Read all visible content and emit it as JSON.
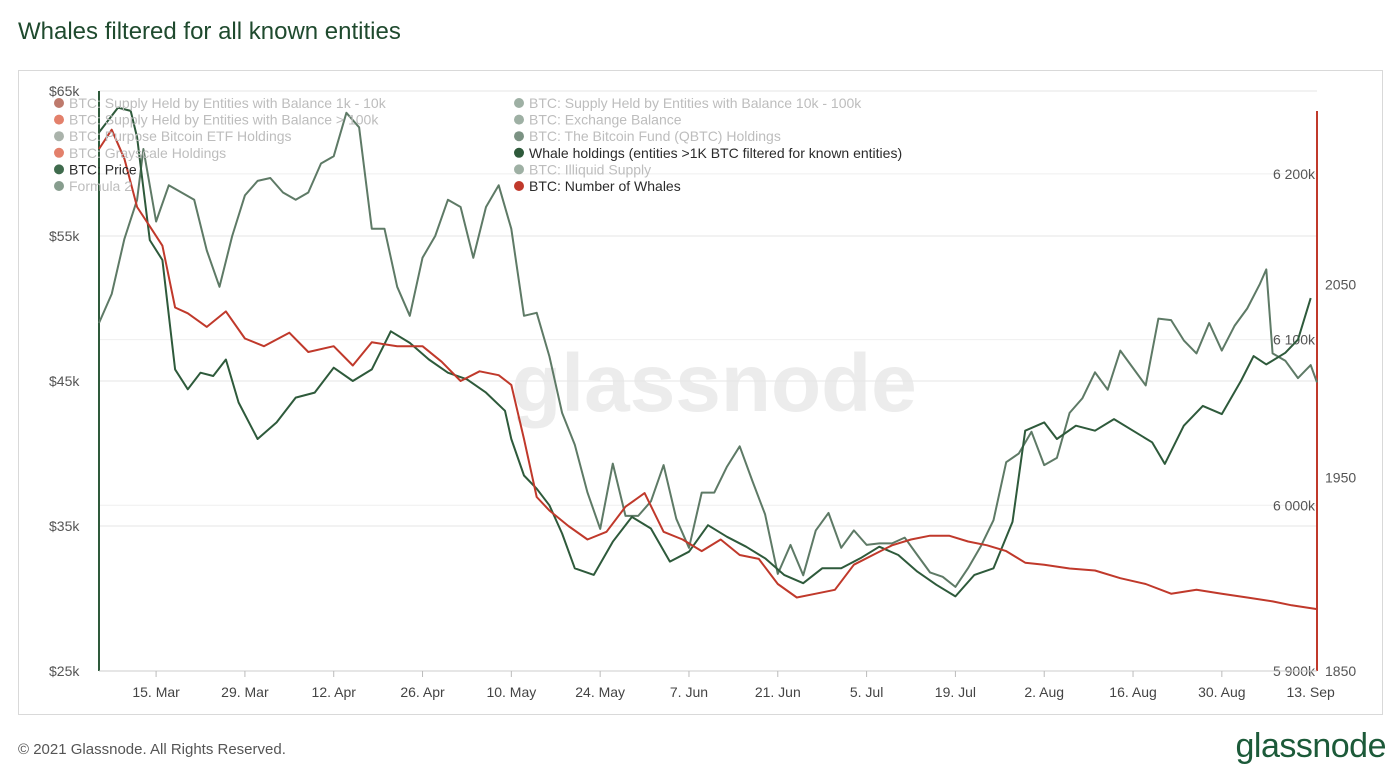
{
  "title": "Whales filtered for all known entities",
  "footer": "© 2021 Glassnode. All Rights Reserved.",
  "brand": "glassnode",
  "watermark": "glassnode",
  "colors": {
    "title": "#1f4a2e",
    "price": "#5e7a66",
    "whale_holdings": "#2e5a3b",
    "number_of_whales": "#c0392b",
    "grid": "#e6e6e6",
    "right_axis_line": "#c0392b"
  },
  "legend": [
    {
      "label": "BTC: Supply Held by Entities with Balance 1k - 10k",
      "color": "#a84e3b",
      "faded": true
    },
    {
      "label": "BTC: Supply Held by Entities with Balance > 100k",
      "color": "#d9553a",
      "faded": true
    },
    {
      "label": "BTC: Purpose Bitcoin ETF Holdings",
      "color": "#8d9a8f",
      "faded": true
    },
    {
      "label": "BTC: Grayscale Holdings",
      "color": "#d9553a",
      "faded": true
    },
    {
      "label": "BTC: Price",
      "color": "#3f6b4d",
      "faded": false
    },
    {
      "label": "Formula 2",
      "color": "#5f7c68",
      "faded": true
    },
    {
      "label": "BTC: Supply Held by Entities with Balance 10k - 100k",
      "color": "#7e9585",
      "faded": true
    },
    {
      "label": "BTC: Exchange Balance",
      "color": "#7e9585",
      "faded": true
    },
    {
      "label": "BTC: The Bitcoin Fund (QBTC) Holdings",
      "color": "#4f6e59",
      "faded": true
    },
    {
      "label": "Whale holdings (entities >1K BTC filtered for known entities)",
      "color": "#2e5a3b",
      "faded": false
    },
    {
      "label": "BTC: Illiquid Supply",
      "color": "#7e9585",
      "faded": true
    },
    {
      "label": "BTC: Number of Whales",
      "color": "#c0392b",
      "faded": false
    }
  ],
  "chart_data": {
    "type": "line",
    "x_ticks": [
      "15. Mar",
      "29. Mar",
      "12. Apr",
      "26. Apr",
      "10. May",
      "24. May",
      "7. Jun",
      "21. Jun",
      "5. Jul",
      "19. Jul",
      "2. Aug",
      "16. Aug",
      "30. Aug",
      "13. Sep"
    ],
    "x_range": [
      "2021-03-06",
      "2021-09-14"
    ],
    "y_left": {
      "ticks": [
        "$25k",
        "$35k",
        "$45k",
        "$55k",
        "$65k"
      ],
      "range": [
        25000,
        65000
      ]
    },
    "y_right_whales": {
      "ticks": [
        "1850",
        "1950",
        "2050"
      ],
      "range": [
        1850,
        2150
      ]
    },
    "y_right_holdings": {
      "ticks": [
        "5 900k",
        "6 000k",
        "6 100k",
        "6 200k"
      ],
      "range": [
        5900000,
        6250000
      ]
    },
    "grid": true,
    "legend_position": "top-left",
    "series": [
      {
        "name": "BTC: Price",
        "axis": "y_left",
        "points": [
          [
            "2021-03-06",
            49000
          ],
          [
            "2021-03-08",
            51000
          ],
          [
            "2021-03-10",
            54800
          ],
          [
            "2021-03-12",
            57500
          ],
          [
            "2021-03-13",
            61000
          ],
          [
            "2021-03-15",
            56000
          ],
          [
            "2021-03-17",
            58500
          ],
          [
            "2021-03-19",
            58000
          ],
          [
            "2021-03-21",
            57500
          ],
          [
            "2021-03-23",
            54000
          ],
          [
            "2021-03-25",
            51500
          ],
          [
            "2021-03-27",
            55000
          ],
          [
            "2021-03-29",
            57800
          ],
          [
            "2021-03-31",
            58800
          ],
          [
            "2021-04-02",
            59000
          ],
          [
            "2021-04-04",
            58000
          ],
          [
            "2021-04-06",
            57500
          ],
          [
            "2021-04-08",
            58000
          ],
          [
            "2021-04-10",
            60000
          ],
          [
            "2021-04-12",
            60500
          ],
          [
            "2021-04-14",
            63500
          ],
          [
            "2021-04-16",
            62500
          ],
          [
            "2021-04-18",
            55500
          ],
          [
            "2021-04-20",
            55500
          ],
          [
            "2021-04-22",
            51500
          ],
          [
            "2021-04-24",
            49500
          ],
          [
            "2021-04-26",
            53500
          ],
          [
            "2021-04-28",
            55000
          ],
          [
            "2021-04-30",
            57500
          ],
          [
            "2021-05-02",
            57000
          ],
          [
            "2021-05-04",
            53500
          ],
          [
            "2021-05-06",
            57000
          ],
          [
            "2021-05-08",
            58500
          ],
          [
            "2021-05-10",
            55500
          ],
          [
            "2021-05-12",
            49500
          ],
          [
            "2021-05-14",
            49700
          ],
          [
            "2021-05-16",
            46700
          ],
          [
            "2021-05-18",
            42800
          ],
          [
            "2021-05-20",
            40600
          ],
          [
            "2021-05-22",
            37300
          ],
          [
            "2021-05-24",
            34800
          ],
          [
            "2021-05-26",
            39300
          ],
          [
            "2021-05-28",
            35700
          ],
          [
            "2021-05-30",
            35700
          ],
          [
            "2021-06-01",
            36700
          ],
          [
            "2021-06-03",
            39200
          ],
          [
            "2021-06-05",
            35500
          ],
          [
            "2021-06-07",
            33500
          ],
          [
            "2021-06-09",
            37300
          ],
          [
            "2021-06-11",
            37300
          ],
          [
            "2021-06-13",
            39100
          ],
          [
            "2021-06-15",
            40500
          ],
          [
            "2021-06-17",
            38100
          ],
          [
            "2021-06-19",
            35800
          ],
          [
            "2021-06-21",
            31700
          ],
          [
            "2021-06-23",
            33700
          ],
          [
            "2021-06-25",
            31600
          ],
          [
            "2021-06-27",
            34700
          ],
          [
            "2021-06-29",
            35900
          ],
          [
            "2021-07-01",
            33500
          ],
          [
            "2021-07-03",
            34700
          ],
          [
            "2021-07-05",
            33700
          ],
          [
            "2021-07-07",
            33800
          ],
          [
            "2021-07-09",
            33800
          ],
          [
            "2021-07-11",
            34200
          ],
          [
            "2021-07-13",
            33000
          ],
          [
            "2021-07-15",
            31800
          ],
          [
            "2021-07-17",
            31500
          ],
          [
            "2021-07-19",
            30800
          ],
          [
            "2021-07-21",
            32100
          ],
          [
            "2021-07-23",
            33600
          ],
          [
            "2021-07-25",
            35400
          ],
          [
            "2021-07-27",
            39400
          ],
          [
            "2021-07-29",
            40000
          ],
          [
            "2021-07-31",
            41500
          ],
          [
            "2021-08-02",
            39200
          ],
          [
            "2021-08-04",
            39700
          ],
          [
            "2021-08-06",
            42800
          ],
          [
            "2021-08-08",
            43800
          ],
          [
            "2021-08-10",
            45600
          ],
          [
            "2021-08-12",
            44400
          ],
          [
            "2021-08-14",
            47100
          ],
          [
            "2021-08-16",
            45900
          ],
          [
            "2021-08-18",
            44700
          ],
          [
            "2021-08-20",
            49300
          ],
          [
            "2021-08-22",
            49200
          ],
          [
            "2021-08-24",
            47800
          ],
          [
            "2021-08-26",
            46900
          ],
          [
            "2021-08-28",
            49000
          ],
          [
            "2021-08-30",
            47100
          ],
          [
            "2021-09-01",
            48800
          ],
          [
            "2021-09-03",
            50000
          ],
          [
            "2021-09-05",
            51700
          ],
          [
            "2021-09-06",
            52700
          ],
          [
            "2021-09-07",
            46900
          ],
          [
            "2021-09-09",
            46400
          ],
          [
            "2021-09-11",
            45200
          ],
          [
            "2021-09-13",
            46100
          ],
          [
            "2021-09-14",
            44900
          ]
        ]
      },
      {
        "name": "Whale holdings (entities >1K BTC filtered for known entities)",
        "axis": "y_right_holdings",
        "points": [
          [
            "2021-03-06",
            6225000
          ],
          [
            "2021-03-09",
            6240000
          ],
          [
            "2021-03-11",
            6238000
          ],
          [
            "2021-03-12",
            6222000
          ],
          [
            "2021-03-14",
            6160000
          ],
          [
            "2021-03-16",
            6148000
          ],
          [
            "2021-03-18",
            6082000
          ],
          [
            "2021-03-20",
            6070000
          ],
          [
            "2021-03-22",
            6080000
          ],
          [
            "2021-03-24",
            6078000
          ],
          [
            "2021-03-26",
            6088000
          ],
          [
            "2021-03-28",
            6062000
          ],
          [
            "2021-03-31",
            6040000
          ],
          [
            "2021-04-03",
            6050000
          ],
          [
            "2021-04-06",
            6065000
          ],
          [
            "2021-04-09",
            6068000
          ],
          [
            "2021-04-12",
            6083000
          ],
          [
            "2021-04-15",
            6075000
          ],
          [
            "2021-04-18",
            6082000
          ],
          [
            "2021-04-21",
            6105000
          ],
          [
            "2021-04-24",
            6098000
          ],
          [
            "2021-04-27",
            6088000
          ],
          [
            "2021-04-30",
            6080000
          ],
          [
            "2021-05-03",
            6076000
          ],
          [
            "2021-05-06",
            6068000
          ],
          [
            "2021-05-09",
            6057000
          ],
          [
            "2021-05-10",
            6040000
          ],
          [
            "2021-05-12",
            6018000
          ],
          [
            "2021-05-14",
            6010000
          ],
          [
            "2021-05-16",
            6000000
          ],
          [
            "2021-05-18",
            5983000
          ],
          [
            "2021-05-20",
            5962000
          ],
          [
            "2021-05-23",
            5958000
          ],
          [
            "2021-05-26",
            5978000
          ],
          [
            "2021-05-29",
            5993000
          ],
          [
            "2021-06-01",
            5986000
          ],
          [
            "2021-06-04",
            5966000
          ],
          [
            "2021-06-07",
            5972000
          ],
          [
            "2021-06-10",
            5988000
          ],
          [
            "2021-06-13",
            5981000
          ],
          [
            "2021-06-16",
            5975000
          ],
          [
            "2021-06-19",
            5968000
          ],
          [
            "2021-06-22",
            5958000
          ],
          [
            "2021-06-25",
            5953000
          ],
          [
            "2021-06-28",
            5962000
          ],
          [
            "2021-07-01",
            5962000
          ],
          [
            "2021-07-04",
            5968000
          ],
          [
            "2021-07-07",
            5975000
          ],
          [
            "2021-07-10",
            5970000
          ],
          [
            "2021-07-13",
            5960000
          ],
          [
            "2021-07-16",
            5952000
          ],
          [
            "2021-07-19",
            5945000
          ],
          [
            "2021-07-22",
            5958000
          ],
          [
            "2021-07-25",
            5962000
          ],
          [
            "2021-07-28",
            5990000
          ],
          [
            "2021-07-30",
            6045000
          ],
          [
            "2021-08-02",
            6050000
          ],
          [
            "2021-08-04",
            6040000
          ],
          [
            "2021-08-07",
            6048000
          ],
          [
            "2021-08-10",
            6045000
          ],
          [
            "2021-08-13",
            6052000
          ],
          [
            "2021-08-16",
            6045000
          ],
          [
            "2021-08-19",
            6038000
          ],
          [
            "2021-08-21",
            6025000
          ],
          [
            "2021-08-24",
            6048000
          ],
          [
            "2021-08-27",
            6060000
          ],
          [
            "2021-08-30",
            6055000
          ],
          [
            "2021-09-02",
            6075000
          ],
          [
            "2021-09-04",
            6090000
          ],
          [
            "2021-09-06",
            6085000
          ],
          [
            "2021-09-09",
            6092000
          ],
          [
            "2021-09-11",
            6100000
          ],
          [
            "2021-09-13",
            6125000
          ]
        ]
      },
      {
        "name": "BTC: Number of Whales",
        "axis": "y_right_whales",
        "points": [
          [
            "2021-03-06",
            2120
          ],
          [
            "2021-03-08",
            2130
          ],
          [
            "2021-03-10",
            2115
          ],
          [
            "2021-03-12",
            2090
          ],
          [
            "2021-03-14",
            2080
          ],
          [
            "2021-03-16",
            2070
          ],
          [
            "2021-03-18",
            2038
          ],
          [
            "2021-03-20",
            2035
          ],
          [
            "2021-03-23",
            2028
          ],
          [
            "2021-03-26",
            2036
          ],
          [
            "2021-03-29",
            2022
          ],
          [
            "2021-04-01",
            2018
          ],
          [
            "2021-04-05",
            2025
          ],
          [
            "2021-04-08",
            2015
          ],
          [
            "2021-04-12",
            2018
          ],
          [
            "2021-04-15",
            2008
          ],
          [
            "2021-04-18",
            2020
          ],
          [
            "2021-04-22",
            2018
          ],
          [
            "2021-04-26",
            2018
          ],
          [
            "2021-04-29",
            2010
          ],
          [
            "2021-05-02",
            2000
          ],
          [
            "2021-05-05",
            2005
          ],
          [
            "2021-05-08",
            2003
          ],
          [
            "2021-05-10",
            1998
          ],
          [
            "2021-05-12",
            1970
          ],
          [
            "2021-05-14",
            1940
          ],
          [
            "2021-05-16",
            1933
          ],
          [
            "2021-05-19",
            1925
          ],
          [
            "2021-05-22",
            1918
          ],
          [
            "2021-05-25",
            1922
          ],
          [
            "2021-05-28",
            1935
          ],
          [
            "2021-05-31",
            1942
          ],
          [
            "2021-06-03",
            1922
          ],
          [
            "2021-06-06",
            1918
          ],
          [
            "2021-06-09",
            1912
          ],
          [
            "2021-06-12",
            1918
          ],
          [
            "2021-06-15",
            1910
          ],
          [
            "2021-06-18",
            1908
          ],
          [
            "2021-06-21",
            1895
          ],
          [
            "2021-06-24",
            1888
          ],
          [
            "2021-06-27",
            1890
          ],
          [
            "2021-06-30",
            1892
          ],
          [
            "2021-07-03",
            1905
          ],
          [
            "2021-07-06",
            1910
          ],
          [
            "2021-07-09",
            1915
          ],
          [
            "2021-07-12",
            1918
          ],
          [
            "2021-07-15",
            1920
          ],
          [
            "2021-07-18",
            1920
          ],
          [
            "2021-07-21",
            1917
          ],
          [
            "2021-07-24",
            1915
          ],
          [
            "2021-07-27",
            1912
          ],
          [
            "2021-07-30",
            1906
          ],
          [
            "2021-08-02",
            1905
          ],
          [
            "2021-08-06",
            1903
          ],
          [
            "2021-08-10",
            1902
          ],
          [
            "2021-08-14",
            1898
          ],
          [
            "2021-08-18",
            1895
          ],
          [
            "2021-08-22",
            1890
          ],
          [
            "2021-08-26",
            1892
          ],
          [
            "2021-08-30",
            1890
          ],
          [
            "2021-09-03",
            1888
          ],
          [
            "2021-09-07",
            1886
          ],
          [
            "2021-09-10",
            1884
          ],
          [
            "2021-09-14",
            1882
          ]
        ]
      }
    ]
  }
}
